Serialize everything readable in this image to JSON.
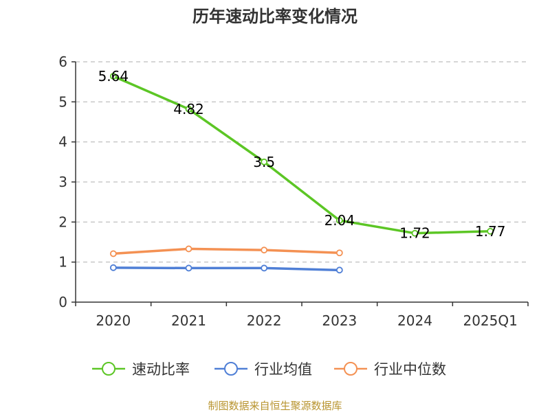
{
  "chart_data": {
    "type": "line",
    "title": "历年速动比率变化情况",
    "categories": [
      "2020",
      "2021",
      "2022",
      "2023",
      "2024",
      "2025Q1"
    ],
    "y_ticks": [
      "0",
      "1",
      "2",
      "3",
      "4",
      "5",
      "6"
    ],
    "ylim": [
      0,
      6
    ],
    "grid": true,
    "legend_position": "bottom",
    "series": [
      {
        "name": "速动比率",
        "color": "#5cc625",
        "values": [
          5.64,
          4.82,
          3.5,
          2.04,
          1.72,
          1.77
        ],
        "data_labels": [
          "5.64",
          "4.82",
          "3.5",
          "2.04",
          "1.72",
          "1.77"
        ]
      },
      {
        "name": "行业均值",
        "color": "#4f7fd6",
        "values": [
          0.86,
          0.85,
          0.85,
          0.8,
          null,
          null
        ]
      },
      {
        "name": "行业中位数",
        "color": "#f49153",
        "values": [
          1.21,
          1.33,
          1.3,
          1.23,
          null,
          null
        ]
      }
    ],
    "source": "制图数据来自恒生聚源数据库"
  }
}
